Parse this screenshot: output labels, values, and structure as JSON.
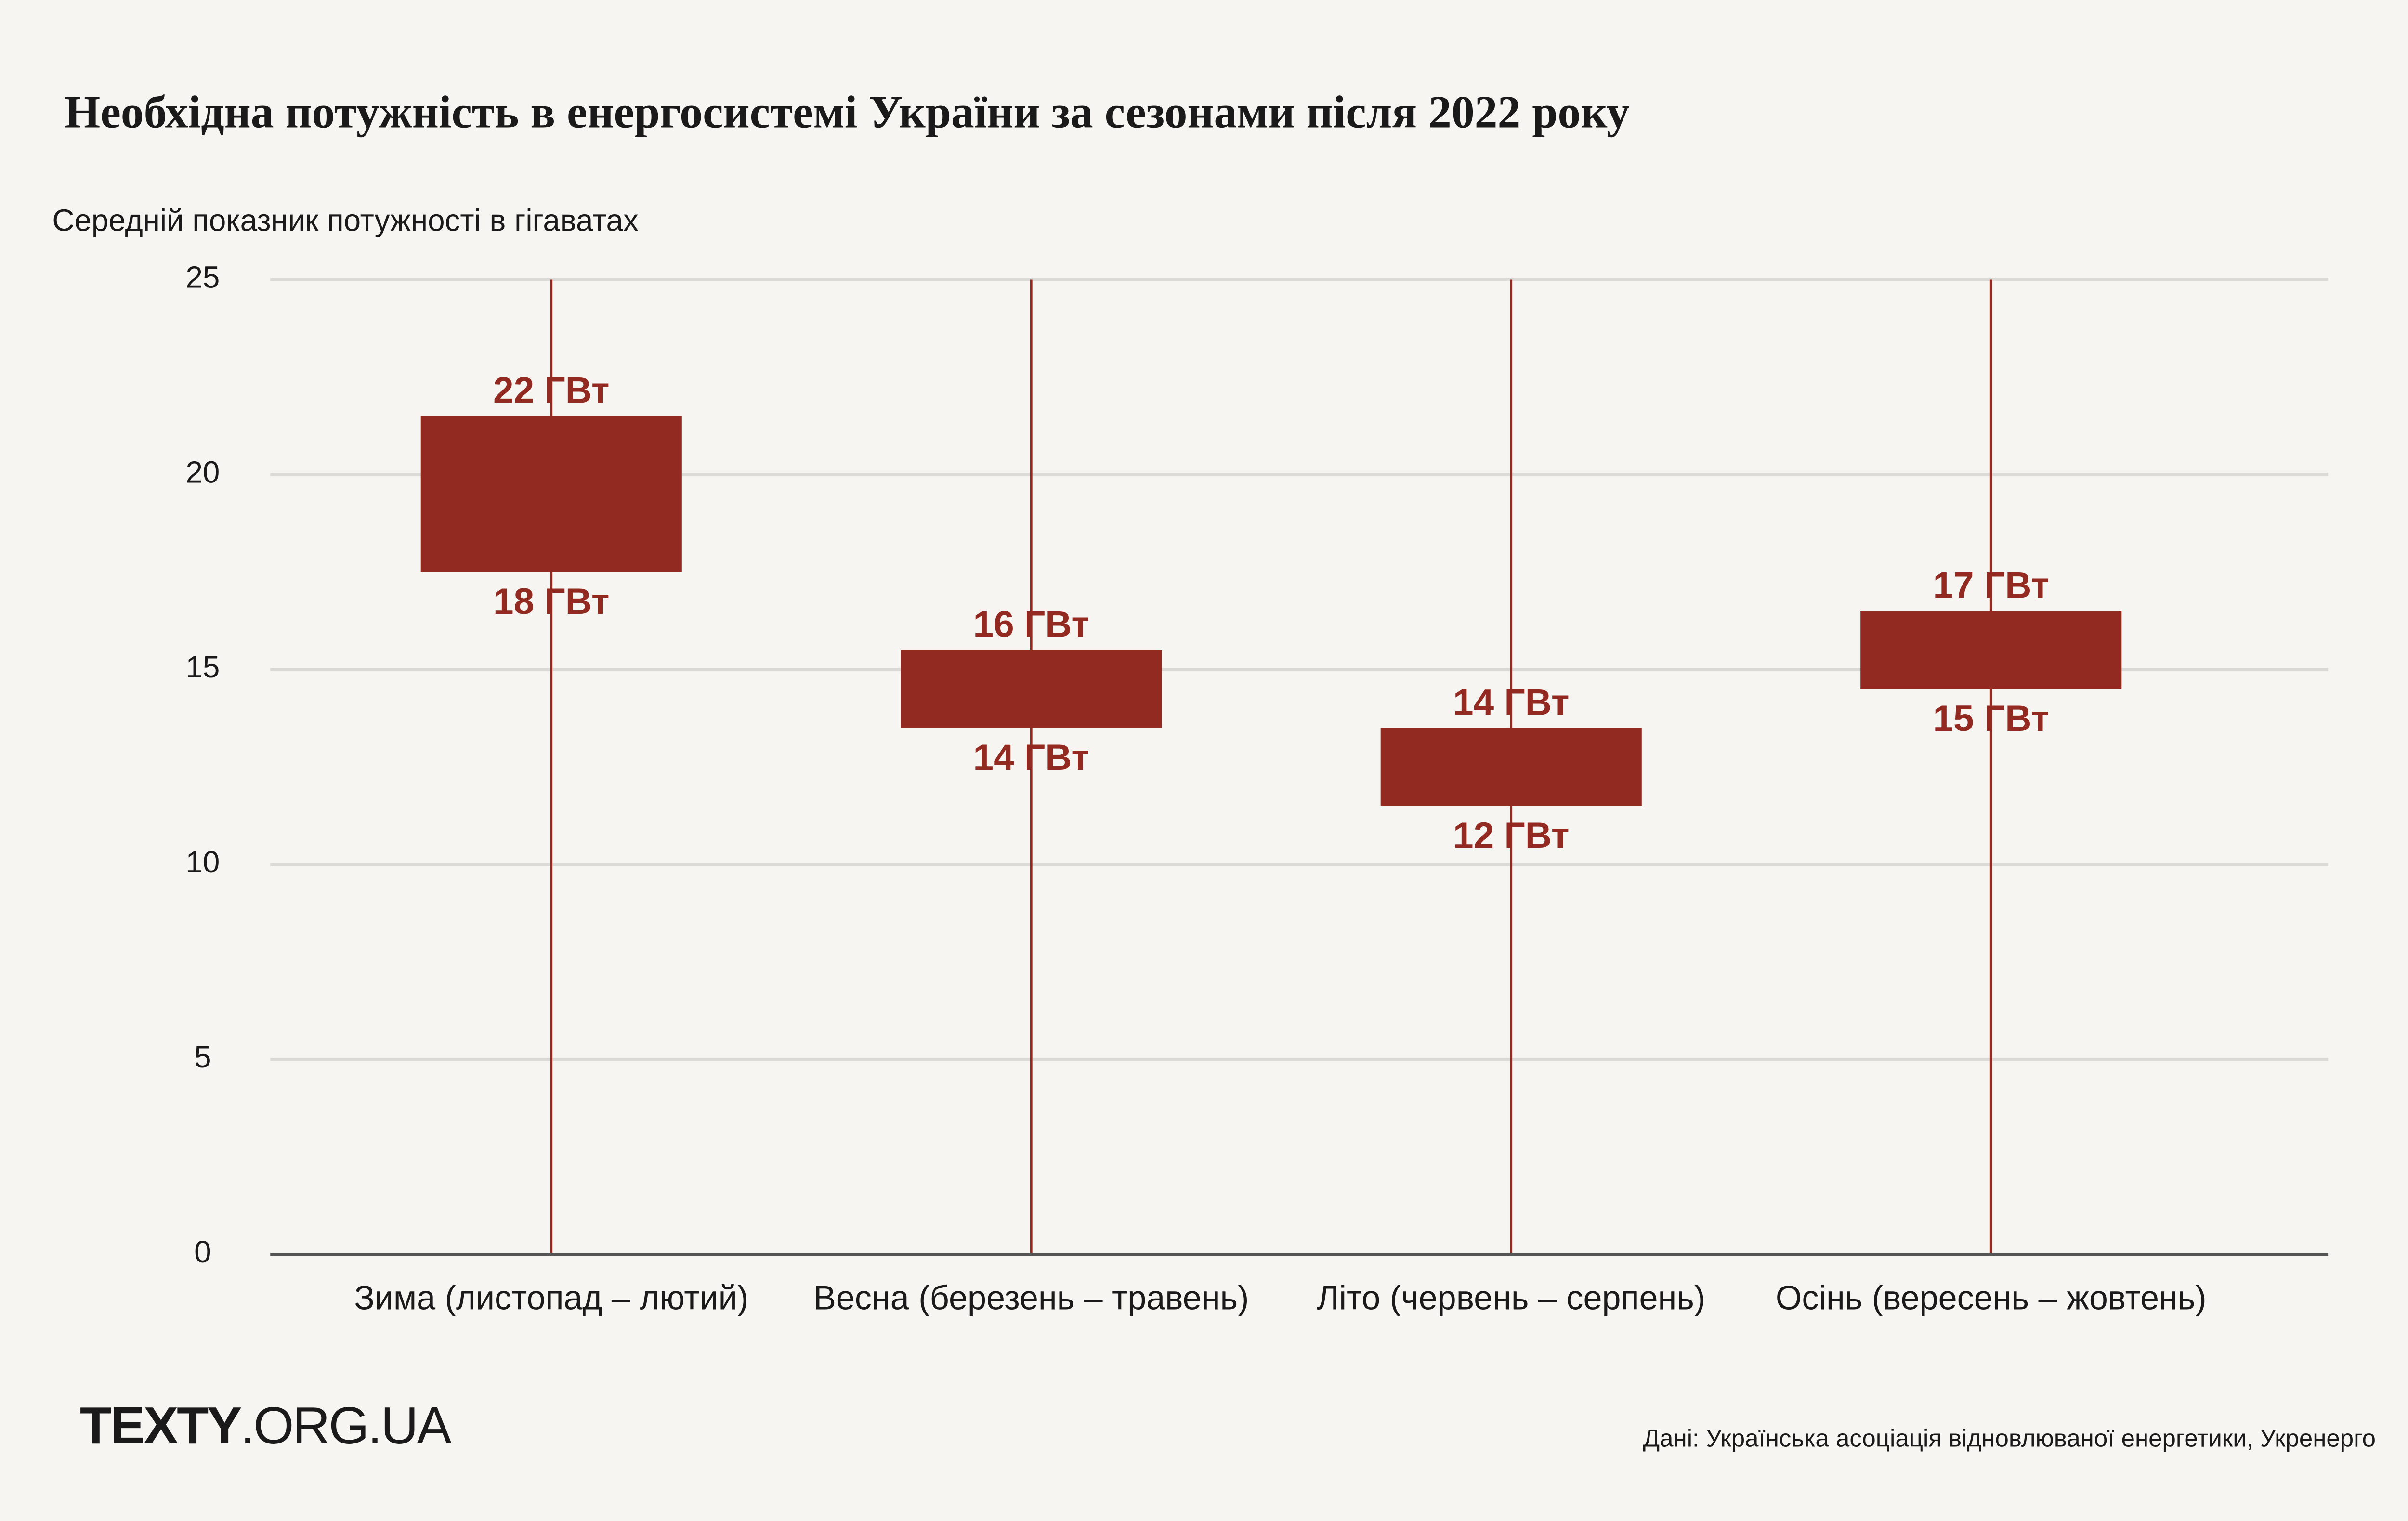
{
  "chart_data": {
    "type": "range-bar",
    "title": "Необхідна потужність в енергосистемі України за сезонами після 2022 року",
    "subtitle": "Середній показник потужності в гігаватах",
    "categories": [
      "Зима (листопад – лютий)",
      "Весна (березень – травень)",
      "Літо (червень – серпень)",
      "Осінь (вересень – жовтень)"
    ],
    "values_low": [
      17.5,
      13.5,
      11.5,
      14.5
    ],
    "values_high": [
      21.5,
      15.5,
      13.5,
      16.5
    ],
    "value_labels_low": [
      "18 ГВт",
      "14 ГВт",
      "12 ГВт",
      "15 ГВт"
    ],
    "value_labels_high": [
      "22 ГВт",
      "16 ГВт",
      "14 ГВт",
      "17 ГВт"
    ],
    "color": "#922a22",
    "ylim": [
      0,
      25
    ],
    "yticks": [
      0,
      5,
      10,
      15,
      20,
      25
    ],
    "grid": true
  },
  "footer": {
    "logo_bold": "TEXTY",
    "logo_rest": ".ORG.UA",
    "source": "Дані: Українська асоціація відновлюваної енергетики, Укренерго"
  }
}
